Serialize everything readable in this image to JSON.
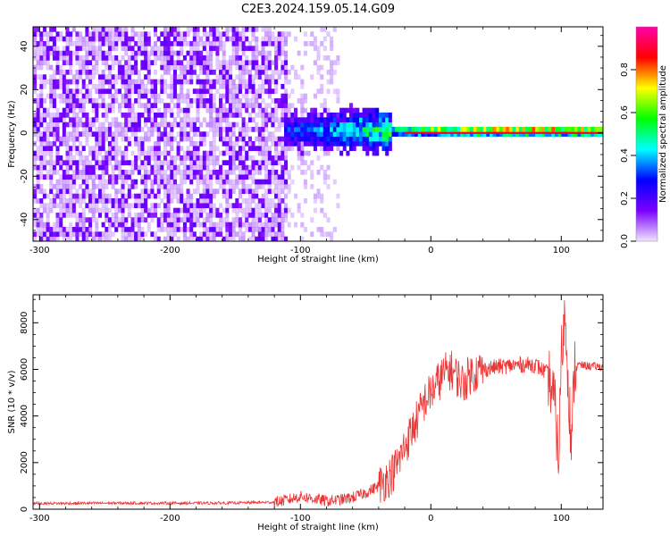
{
  "title": "C2E3.2024.159.05.14.G09",
  "chart_data": [
    {
      "type": "heatmap",
      "title": "C2E3.2024.159.05.14.G09",
      "xlabel": "Height of straight line (km)",
      "ylabel": "Frequency (Hz)",
      "xlim": [
        -305,
        132
      ],
      "ylim": [
        -50,
        49
      ],
      "x_ticks": [
        -300,
        -200,
        -100,
        0,
        100
      ],
      "y_ticks": [
        -40,
        -20,
        0,
        20,
        40
      ],
      "colorbar": {
        "label": "Normalized spectral amplitude",
        "range": [
          0,
          1
        ],
        "ticks": [
          0.0,
          0.2,
          0.4,
          0.6,
          0.8
        ],
        "tick_labels": [
          "0.0",
          "0.2",
          "0.4",
          "0.6",
          "0.8"
        ],
        "colors": [
          "#f0e6ff",
          "#7a00ff",
          "#0000ff",
          "#00ffff",
          "#00ff00",
          "#ffff00",
          "#ff0000",
          "#ff00aa"
        ]
      },
      "features": [
        {
          "description_key": "noise",
          "x_range": [
            -305,
            -110
          ],
          "y_range": [
            -50,
            49
          ],
          "amplitude": 0.12
        },
        {
          "description_key": "transition",
          "x_range": [
            -110,
            -70
          ],
          "y_range": [
            -50,
            49
          ],
          "amplitude": 0.05
        },
        {
          "description_key": "carrier",
          "x_range": [
            -115,
            132
          ],
          "freq_hz": 0,
          "amplitude_start": 0.3,
          "amplitude_end": 0.9
        }
      ],
      "grid": false
    },
    {
      "type": "line",
      "xlabel": "Height of straight line (km)",
      "ylabel": "SNR (10 * v/v)",
      "xlim": [
        -305,
        132
      ],
      "ylim": [
        0,
        9200
      ],
      "x_ticks": [
        -300,
        -200,
        -100,
        0,
        100
      ],
      "y_ticks": [
        0,
        2000,
        4000,
        6000,
        8000
      ],
      "color": "#ee3333",
      "grid": false,
      "x": [
        -305,
        -280,
        -250,
        -220,
        -200,
        -180,
        -150,
        -120,
        -110,
        -100,
        -90,
        -80,
        -70,
        -60,
        -50,
        -40,
        -30,
        -25,
        -20,
        -15,
        -10,
        -5,
        0,
        5,
        10,
        15,
        20,
        25,
        30,
        40,
        50,
        60,
        70,
        80,
        85,
        90,
        95,
        98,
        100,
        103,
        105,
        108,
        110,
        120,
        132
      ],
      "y": [
        250,
        250,
        260,
        260,
        260,
        260,
        270,
        300,
        400,
        550,
        450,
        350,
        400,
        500,
        700,
        1000,
        1500,
        2000,
        2700,
        3300,
        3900,
        4600,
        5000,
        5400,
        5800,
        6000,
        5700,
        5400,
        5800,
        6000,
        6100,
        6150,
        6200,
        6200,
        6000,
        5800,
        4500,
        2200,
        6500,
        8500,
        6000,
        2500,
        6200,
        6150,
        6100
      ]
    }
  ]
}
